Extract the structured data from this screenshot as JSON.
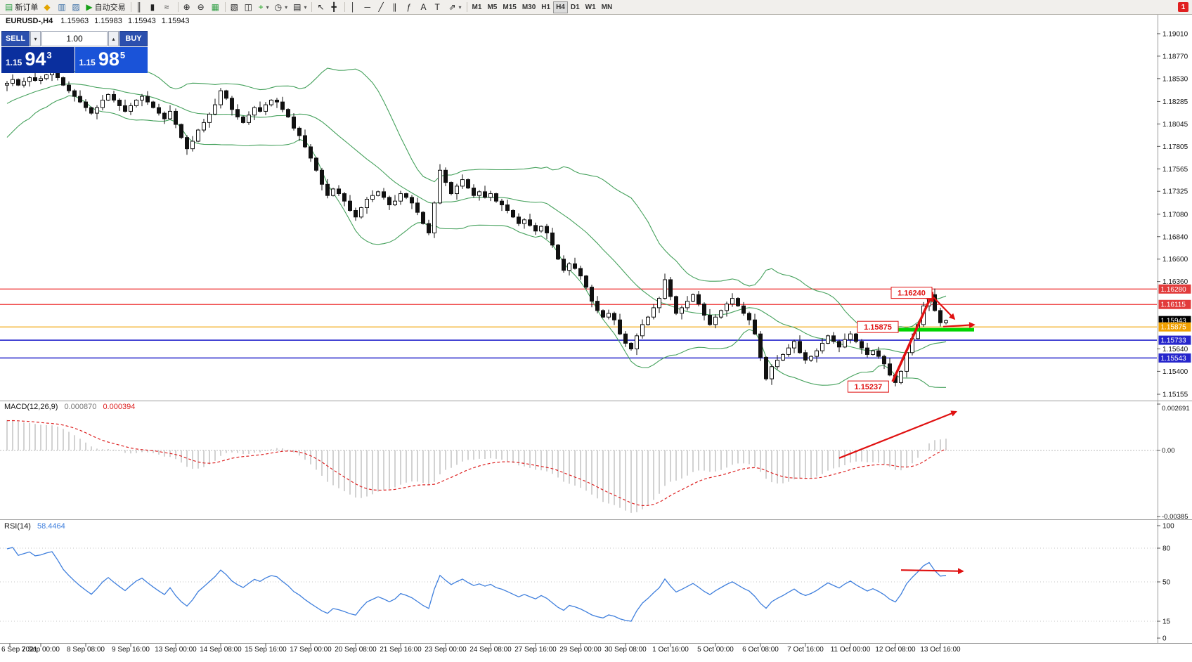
{
  "toolbar": {
    "notification_badge": "1",
    "caret_glyph": "▾",
    "buttons": [
      {
        "name": "new-order-button",
        "glyph": "▤",
        "glyph_color": "#2f9e44",
        "label": "新订单"
      },
      {
        "name": "market-watch-button",
        "glyph": "◆",
        "glyph_color": "#e2a400"
      },
      {
        "name": "data-window-button",
        "glyph": "▥",
        "glyph_color": "#3a6ea5"
      },
      {
        "name": "navigator-button",
        "glyph": "▨",
        "glyph_color": "#3a6ea5"
      },
      {
        "name": "auto-trading-button",
        "glyph": "▶",
        "glyph_color": "#18a018",
        "label": "自动交易"
      },
      {
        "sep": true
      },
      {
        "name": "chart-bars-button",
        "glyph": "║"
      },
      {
        "name": "chart-candles-button",
        "glyph": "▮"
      },
      {
        "name": "chart-line-button",
        "glyph": "≈"
      },
      {
        "sep": true
      },
      {
        "name": "zoom-in-button",
        "glyph": "⊕"
      },
      {
        "name": "zoom-out-button",
        "glyph": "⊖"
      },
      {
        "name": "tile-windows-button",
        "glyph": "▦",
        "glyph_color": "#2f9e44"
      },
      {
        "sep": true
      },
      {
        "name": "profiles-button",
        "glyph": "▧"
      },
      {
        "name": "chart-list-button",
        "glyph": "◫"
      },
      {
        "name": "add-indicator-button",
        "glyph": "+",
        "glyph_color": "#18a018",
        "caret": true
      },
      {
        "name": "periods-button",
        "glyph": "◷",
        "caret": true
      },
      {
        "name": "templates-button",
        "glyph": "▤",
        "caret": true
      },
      {
        "sep": true
      },
      {
        "name": "cursor-button",
        "glyph": "↖"
      },
      {
        "name": "crosshair-button",
        "glyph": "╋"
      },
      {
        "sep": true
      },
      {
        "name": "vertical-line-button",
        "glyph": "│"
      },
      {
        "name": "horizontal-line-button",
        "glyph": "─"
      },
      {
        "name": "trendline-button",
        "glyph": "╱"
      },
      {
        "name": "channel-button",
        "glyph": "∥"
      },
      {
        "name": "fibonacci-button",
        "glyph": "ƒ"
      },
      {
        "name": "text-button",
        "glyph": "A"
      },
      {
        "name": "label-button",
        "glyph": "T"
      },
      {
        "name": "arrows-button",
        "glyph": "⇗",
        "caret": true
      },
      {
        "sep": true
      },
      {
        "name": "tf-m1-button",
        "label": "M1",
        "tf": true
      },
      {
        "name": "tf-m5-button",
        "label": "M5",
        "tf": true
      },
      {
        "name": "tf-m15-button",
        "label": "M15",
        "tf": true
      },
      {
        "name": "tf-m30-button",
        "label": "M30",
        "tf": true
      },
      {
        "name": "tf-h1-button",
        "label": "H1",
        "tf": true
      },
      {
        "name": "tf-h4-button",
        "label": "H4",
        "tf": true,
        "active": true
      },
      {
        "name": "tf-d1-button",
        "label": "D1",
        "tf": true
      },
      {
        "name": "tf-w1-button",
        "label": "W1",
        "tf": true
      },
      {
        "name": "tf-mn-button",
        "label": "MN",
        "tf": true
      }
    ]
  },
  "trade_panel": {
    "sell_label": "SELL",
    "buy_label": "BUY",
    "volume": "1.00",
    "volume_down_icon": "▾",
    "volume_up_icon": "▴",
    "sell_price": {
      "prefix": "1.15",
      "big": "94",
      "sup": "3"
    },
    "buy_price": {
      "prefix": "1.15",
      "big": "98",
      "sup": "5"
    }
  },
  "chart_header": {
    "symbol": "EURUSD-,H4",
    "open": "1.15963",
    "high": "1.15983",
    "low": "1.15943",
    "close": "1.15943"
  },
  "chart_data": {
    "type": "candlestick",
    "timeframe": "H4",
    "ylim": [
      1.15095,
      1.1922
    ],
    "colors": {
      "bull": "#ffffff",
      "bear": "#111111",
      "wick": "#111111",
      "bands": "#45a15c"
    },
    "bollinger": {
      "period": 20,
      "deviation": 2
    },
    "wick_pattern": [
      0.00025,
      0.00055,
      0.00012,
      0.0004,
      0.00018,
      0.00065,
      0.0003,
      0.0001
    ],
    "pre_closes": [
      1.1762,
      1.1768,
      1.1775,
      1.177,
      1.1778,
      1.1785,
      1.1792,
      1.1788,
      1.1795,
      1.1802,
      1.181,
      1.1806,
      1.1815,
      1.1822,
      1.1818,
      1.1826,
      1.1832,
      1.1828,
      1.1836,
      1.184,
      1.1837,
      1.1842,
      1.1846,
      1.1843,
      1.1847,
      1.1846
    ],
    "closes": [
      1.1848,
      1.1852,
      1.1846,
      1.185,
      1.1854,
      1.1851,
      1.1853,
      1.1857,
      1.186,
      1.1854,
      1.1846,
      1.184,
      1.1834,
      1.1828,
      1.1822,
      1.1816,
      1.1822,
      1.183,
      1.1836,
      1.183,
      1.1824,
      1.1818,
      1.1824,
      1.183,
      1.1834,
      1.1828,
      1.1822,
      1.1816,
      1.181,
      1.1818,
      1.1804,
      1.179,
      1.1778,
      1.1786,
      1.1798,
      1.1806,
      1.1815,
      1.1825,
      1.184,
      1.1832,
      1.182,
      1.1812,
      1.1806,
      1.1814,
      1.1822,
      1.1818,
      1.1825,
      1.183,
      1.1828,
      1.182,
      1.1812,
      1.18,
      1.1792,
      1.178,
      1.1768,
      1.1755,
      1.174,
      1.1728,
      1.1735,
      1.173,
      1.1722,
      1.1712,
      1.1705,
      1.1715,
      1.1724,
      1.1728,
      1.1732,
      1.1726,
      1.1718,
      1.1722,
      1.173,
      1.1726,
      1.172,
      1.171,
      1.1698,
      1.1688,
      1.172,
      1.1755,
      1.1742,
      1.173,
      1.1738,
      1.1745,
      1.1736,
      1.1728,
      1.1732,
      1.1726,
      1.173,
      1.1722,
      1.1718,
      1.1712,
      1.1705,
      1.1698,
      1.1702,
      1.1696,
      1.169,
      1.1695,
      1.1688,
      1.1675,
      1.166,
      1.1648,
      1.1655,
      1.165,
      1.1642,
      1.163,
      1.1615,
      1.1605,
      1.1598,
      1.1602,
      1.1595,
      1.158,
      1.157,
      1.1564,
      1.1578,
      1.159,
      1.1598,
      1.1608,
      1.1618,
      1.1638,
      1.162,
      1.1602,
      1.1608,
      1.1615,
      1.1622,
      1.1612,
      1.16,
      1.159,
      1.1598,
      1.1605,
      1.1612,
      1.1618,
      1.161,
      1.1602,
      1.1595,
      1.158,
      1.1555,
      1.1532,
      1.1545,
      1.1552,
      1.1558,
      1.1565,
      1.1572,
      1.156,
      1.1552,
      1.1556,
      1.1562,
      1.157,
      1.1578,
      1.1572,
      1.1566,
      1.1574,
      1.158,
      1.1572,
      1.1565,
      1.1558,
      1.1562,
      1.1556,
      1.1548,
      1.1536,
      1.1528,
      1.154,
      1.156,
      1.1575,
      1.159,
      1.161,
      1.1622,
      1.1605,
      1.1592,
      1.15943
    ],
    "y_ticks": [
      "1.19010",
      "1.18770",
      "1.18530",
      "1.18285",
      "1.18045",
      "1.17805",
      "1.17565",
      "1.17325",
      "1.17080",
      "1.16840",
      "1.16600",
      "1.16360",
      "1.15640",
      "1.15400",
      "1.15155"
    ],
    "price_labels": [
      {
        "price": 1.1628,
        "text": "1.16280",
        "bg": "#e23b3b",
        "fg": "#ffffff"
      },
      {
        "price": 1.16115,
        "text": "1.16115",
        "bg": "#e23b3b",
        "fg": "#ffffff"
      },
      {
        "price": 1.15943,
        "text": "1.15943",
        "bg": "#000000",
        "fg": "#ffffff"
      },
      {
        "price": 1.15875,
        "text": "1.15875",
        "bg": "#f0a000",
        "fg": "#ffffff"
      },
      {
        "price": 1.15733,
        "text": "1.15733",
        "bg": "#2626cc",
        "fg": "#ffffff"
      },
      {
        "price": 1.15543,
        "text": "1.15543",
        "bg": "#2626cc",
        "fg": "#ffffff"
      }
    ],
    "hlines": [
      {
        "price": 1.1628,
        "color": "#ee3333",
        "width": 1.2
      },
      {
        "price": 1.16115,
        "color": "#ee3333",
        "width": 1.2
      },
      {
        "price": 1.15875,
        "color": "#f0a000",
        "width": 1.2
      },
      {
        "price": 1.15733,
        "color": "#2626cc",
        "width": 1.6
      },
      {
        "price": 1.15543,
        "color": "#2626cc",
        "width": 1.6
      }
    ],
    "annotations": {
      "arrow_color": "#e01010",
      "labels": [
        {
          "text": "1.16240",
          "bar": 165,
          "price": 1.1624
        },
        {
          "text": "1.15875",
          "bar": 159,
          "price": 1.15875
        },
        {
          "text": "1.15237",
          "bar": 157.3,
          "price": 1.15237
        }
      ],
      "zone": {
        "price": 1.15845,
        "bar1": 158,
        "bar2": 172,
        "color": "#00d400"
      },
      "arrows": [
        {
          "x1_bar": 157.5,
          "p1": 1.1529,
          "x2_bar": 164.6,
          "p2": 1.16235,
          "width": 3.5
        },
        {
          "x1_bar": 164.8,
          "p1": 1.1619,
          "x2_bar": 168.5,
          "p2": 1.1596,
          "width": 2.2
        },
        {
          "x1_bar": 166.5,
          "p1": 1.15878,
          "x2_bar": 172.0,
          "p2": 1.15898,
          "width": 2.2
        }
      ]
    }
  },
  "macd": {
    "label": "MACD(12,26,9)",
    "value1": "0.000870",
    "value2": "0.000394",
    "params": {
      "fast": 12,
      "slow": 26,
      "signal": 9
    },
    "ylim": [
      -0.00385,
      0.002691
    ],
    "axis_values": [
      0.002691,
      0,
      -0.00385
    ],
    "axis_labels": [
      "0.002691",
      "0.00",
      "-0.00385"
    ],
    "hist_color": "#a6a6a6",
    "signal_color": "#dd2222",
    "arrow": {
      "x1_bar": 148,
      "v1": -0.00045,
      "x2_bar": 168.8,
      "v2": 0.00225,
      "width": 2.2
    }
  },
  "rsi": {
    "label": "RSI(14)",
    "value": "58.4464",
    "period": 14,
    "axis_values": [
      100,
      80,
      50,
      15,
      0
    ],
    "axis_labels": [
      "100",
      "80",
      "50",
      "15",
      "0"
    ],
    "levels": [
      80,
      50,
      15
    ],
    "line_color": "#3f7fdd",
    "arrow": {
      "x1_bar": 159,
      "v1": 60.5,
      "x2_bar": 170,
      "v2": 59.5,
      "width": 2.2
    }
  },
  "time_axis": [
    "6 Sep 2021",
    "7 Sep 00:00",
    "8 Sep 08:00",
    "9 Sep 16:00",
    "13 Sep 00:00",
    "14 Sep 08:00",
    "15 Sep 16:00",
    "17 Sep 00:00",
    "20 Sep 08:00",
    "21 Sep 16:00",
    "23 Sep 00:00",
    "24 Sep 08:00",
    "27 Sep 16:00",
    "29 Sep 00:00",
    "30 Sep 08:00",
    "1 Oct 16:00",
    "5 Oct 00:00",
    "6 Oct 08:00",
    "7 Oct 16:00",
    "11 Oct 00:00",
    "12 Oct 08:00",
    "13 Oct 16:00"
  ]
}
